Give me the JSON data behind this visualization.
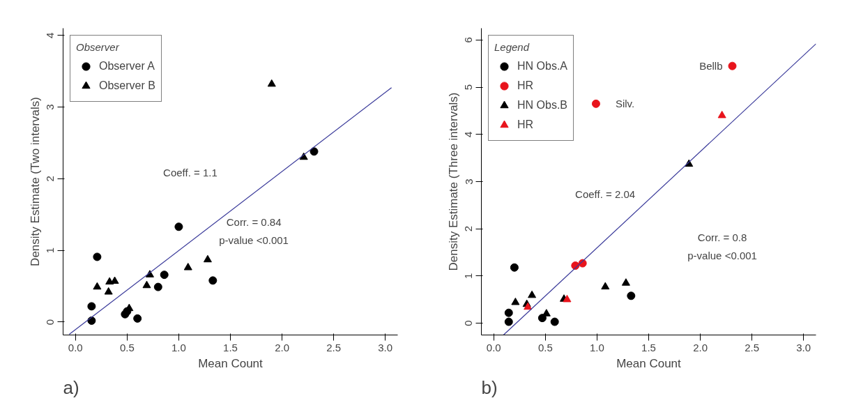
{
  "chart_data": [
    {
      "type": "scatter",
      "xlabel": "Mean Count",
      "ylabel": "Density Estimate (Two intervals)",
      "legend_title": "Observer",
      "legend": "top left",
      "grid": false,
      "xlim": [
        -0.12,
        3.12
      ],
      "ylim": [
        -0.18,
        4.1
      ],
      "xticks": [
        {
          "value": 0,
          "label": "0.0"
        },
        0.5,
        {
          "value": 1,
          "label": "1.0"
        },
        1.5,
        {
          "value": 2,
          "label": "2.0"
        },
        2.5,
        {
          "value": 3,
          "label": "3.0"
        }
      ],
      "yticks": [
        0,
        1,
        2,
        3,
        4
      ],
      "series": [
        {
          "name": "Observer A",
          "marker": "circle",
          "color": "#000000",
          "x": [
            0.156,
            0.156,
            0.21,
            0.48,
            0.5,
            0.6,
            0.8,
            0.86,
            1.0,
            1.33,
            2.31
          ],
          "values": [
            0.02,
            0.22,
            0.91,
            0.11,
            0.15,
            0.05,
            0.49,
            0.66,
            1.33,
            0.58,
            2.38
          ]
        },
        {
          "name": "Observer B",
          "marker": "triangle",
          "color": "#000000",
          "x": [
            0.21,
            0.32,
            0.33,
            0.38,
            0.52,
            0.69,
            0.72,
            1.09,
            1.28,
            1.9,
            2.21
          ],
          "values": [
            0.49,
            0.42,
            0.56,
            0.57,
            0.19,
            0.51,
            0.66,
            0.76,
            0.87,
            3.32,
            2.3
          ]
        },
        {
          "type": "line",
          "color": "#3a3a9a",
          "x": [
            -0.06,
            3.06
          ],
          "values": [
            -0.17,
            3.27
          ]
        }
      ],
      "annotations": [
        "Coeff. = 1.1",
        "Corr. = 0.84",
        "p-value <0.001",
        "a)"
      ]
    },
    {
      "type": "scatter",
      "xlabel": "Mean Count",
      "ylabel": "Density Estimate (Three intervals)",
      "legend_title": "Legend",
      "legend": "top left",
      "grid": false,
      "xlim": [
        -0.12,
        3.12
      ],
      "ylim": [
        -0.25,
        6.25
      ],
      "xticks": [
        {
          "value": 0,
          "label": "0.0"
        },
        0.5,
        {
          "value": 1,
          "label": "1.0"
        },
        1.5,
        {
          "value": 2,
          "label": "2.0"
        },
        2.5,
        {
          "value": 3,
          "label": "3.0"
        }
      ],
      "yticks": [
        0,
        1,
        2,
        3,
        4,
        5,
        6
      ],
      "series": [
        {
          "name": "HN Obs.A",
          "marker": "circle",
          "color": "#000000",
          "x": [
            0.145,
            0.145,
            0.2,
            0.47,
            0.59,
            1.33
          ],
          "values": [
            0.03,
            0.22,
            1.18,
            0.11,
            0.03,
            0.58
          ]
        },
        {
          "name": "HR",
          "marker": "circle",
          "color": "#e8141c",
          "x": [
            0.79,
            0.86,
            0.99,
            2.31
          ],
          "values": [
            1.22,
            1.27,
            4.65,
            5.45
          ]
        },
        {
          "name": "HN Obs.B",
          "marker": "triangle",
          "color": "#000000",
          "x": [
            0.21,
            0.32,
            0.37,
            0.51,
            0.68,
            1.08,
            1.28,
            1.89
          ],
          "values": [
            0.44,
            0.4,
            0.59,
            0.2,
            0.51,
            0.77,
            0.85,
            3.37
          ]
        },
        {
          "name": "HR",
          "marker": "triangle",
          "color": "#e8141c",
          "x": [
            0.33,
            0.71,
            2.21
          ],
          "values": [
            0.34,
            0.5,
            4.4
          ]
        },
        {
          "type": "line",
          "color": "#3a3a9a",
          "x": [
            0.094,
            3.12
          ],
          "values": [
            -0.25,
            5.92
          ]
        }
      ],
      "annotations": [
        {
          "text": "Bellb",
          "x": 2.31,
          "y": 5.45
        },
        {
          "text": "Silv.",
          "x": 0.99,
          "y": 4.65
        },
        "Coeff. = 2.04",
        "Corr. = 0.8",
        "p-value <0.001",
        "b)"
      ]
    }
  ]
}
